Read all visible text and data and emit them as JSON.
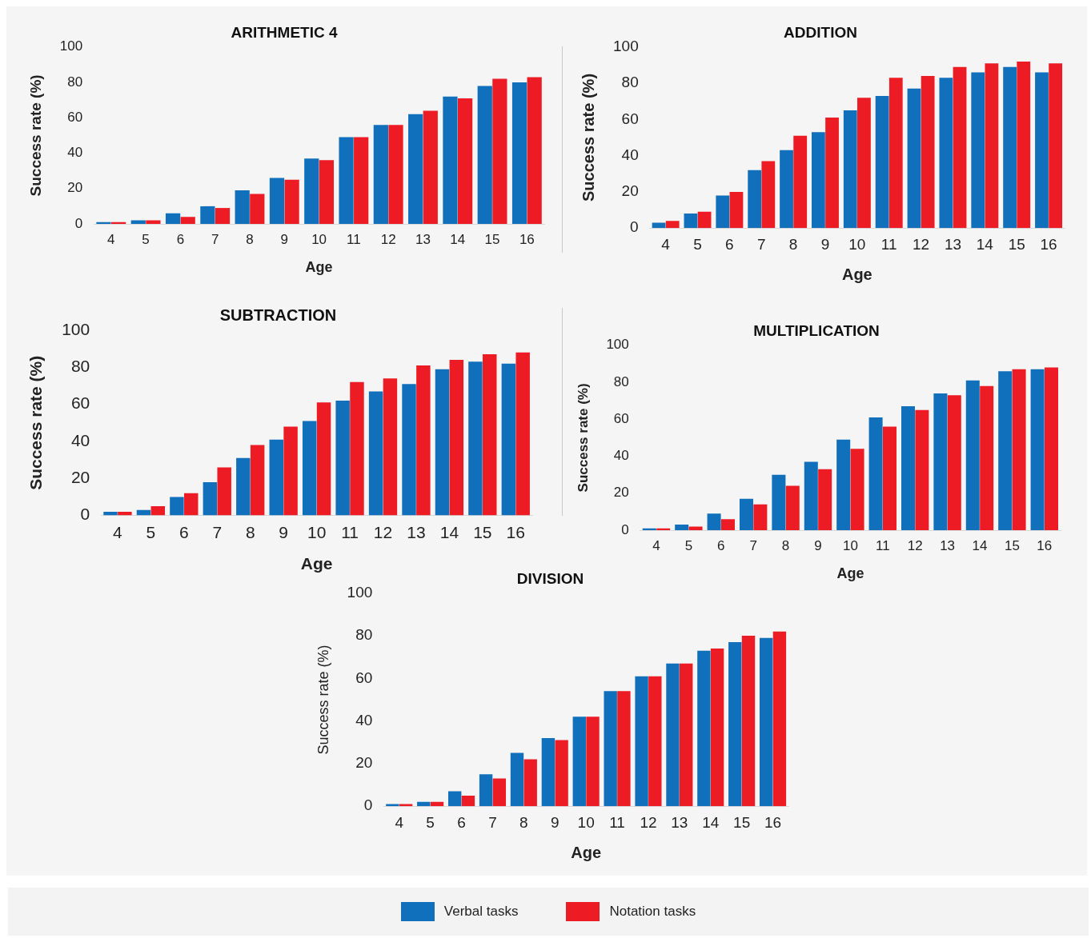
{
  "chart_data": [
    {
      "type": "bar",
      "title": "ARITHMETIC 4",
      "xlabel": "Age",
      "ylabel": "Success rate (%)",
      "categories": [
        "4",
        "5",
        "6",
        "7",
        "8",
        "9",
        "10",
        "11",
        "12",
        "13",
        "14",
        "15",
        "16"
      ],
      "ylim": [
        0,
        100
      ],
      "yticks": [
        0,
        20,
        40,
        60,
        80,
        100
      ],
      "series": [
        {
          "color": "#1170bb",
          "values": [
            1,
            2,
            6,
            10,
            19,
            26,
            37,
            49,
            56,
            62,
            72,
            78,
            80
          ]
        },
        {
          "color": "#ed1c24",
          "values": [
            1,
            2,
            4,
            9,
            17,
            25,
            36,
            49,
            56,
            64,
            71,
            82,
            83
          ]
        }
      ]
    },
    {
      "type": "bar",
      "title": "ADDITION",
      "xlabel": "Age",
      "ylabel": "Success rate (%)",
      "categories": [
        "4",
        "5",
        "6",
        "7",
        "8",
        "9",
        "10",
        "11",
        "12",
        "13",
        "14",
        "15",
        "16"
      ],
      "ylim": [
        0,
        100
      ],
      "yticks": [
        0,
        20,
        40,
        60,
        80,
        100
      ],
      "series": [
        {
          "color": "#1170bb",
          "values": [
            3,
            8,
            18,
            32,
            43,
            53,
            65,
            73,
            77,
            83,
            86,
            89,
            86
          ]
        },
        {
          "color": "#ed1c24",
          "values": [
            4,
            9,
            20,
            37,
            51,
            61,
            72,
            83,
            84,
            89,
            91,
            92,
            91
          ]
        }
      ]
    },
    {
      "type": "bar",
      "title": "SUBTRACTION",
      "xlabel": "Age",
      "ylabel": "Success rate (%)",
      "categories": [
        "4",
        "5",
        "6",
        "7",
        "8",
        "9",
        "10",
        "11",
        "12",
        "13",
        "14",
        "15",
        "16"
      ],
      "ylim": [
        0,
        100
      ],
      "yticks": [
        0,
        20,
        40,
        60,
        80,
        100
      ],
      "series": [
        {
          "color": "#1170bb",
          "values": [
            2,
            3,
            10,
            18,
            31,
            41,
            51,
            62,
            67,
            71,
            79,
            83,
            82
          ]
        },
        {
          "color": "#ed1c24",
          "values": [
            2,
            5,
            12,
            26,
            38,
            48,
            61,
            72,
            74,
            81,
            84,
            87,
            88
          ]
        }
      ]
    },
    {
      "type": "bar",
      "title": "MULTIPLICATION",
      "xlabel": "Age",
      "ylabel": "Success rate (%)",
      "categories": [
        "4",
        "5",
        "6",
        "7",
        "8",
        "9",
        "10",
        "11",
        "12",
        "13",
        "14",
        "15",
        "16"
      ],
      "ylim": [
        0,
        100
      ],
      "yticks": [
        0,
        20,
        40,
        60,
        80,
        100
      ],
      "series": [
        {
          "color": "#1170bb",
          "values": [
            1,
            3,
            9,
            17,
            30,
            37,
            49,
            61,
            67,
            74,
            81,
            86,
            87
          ]
        },
        {
          "color": "#ed1c24",
          "values": [
            1,
            2,
            6,
            14,
            24,
            33,
            44,
            56,
            65,
            73,
            78,
            87,
            88
          ]
        }
      ]
    },
    {
      "type": "bar",
      "title": "DIVISION",
      "xlabel": "Age",
      "ylabel": "Success rate (%)",
      "categories": [
        "4",
        "5",
        "6",
        "7",
        "8",
        "9",
        "10",
        "11",
        "12",
        "13",
        "14",
        "15",
        "16"
      ],
      "ylim": [
        0,
        100
      ],
      "yticks": [
        0,
        20,
        40,
        60,
        80,
        100
      ],
      "legend": "bottom",
      "series": [
        {
          "name": "Verbal tasks",
          "color": "#1170bb",
          "values": [
            1,
            2,
            7,
            15,
            25,
            32,
            42,
            54,
            61,
            67,
            73,
            77,
            79
          ]
        },
        {
          "name": "Notation tasks",
          "color": "#ed1c24",
          "values": [
            1,
            2,
            5,
            13,
            22,
            31,
            42,
            54,
            61,
            67,
            74,
            80,
            82
          ]
        }
      ]
    }
  ]
}
